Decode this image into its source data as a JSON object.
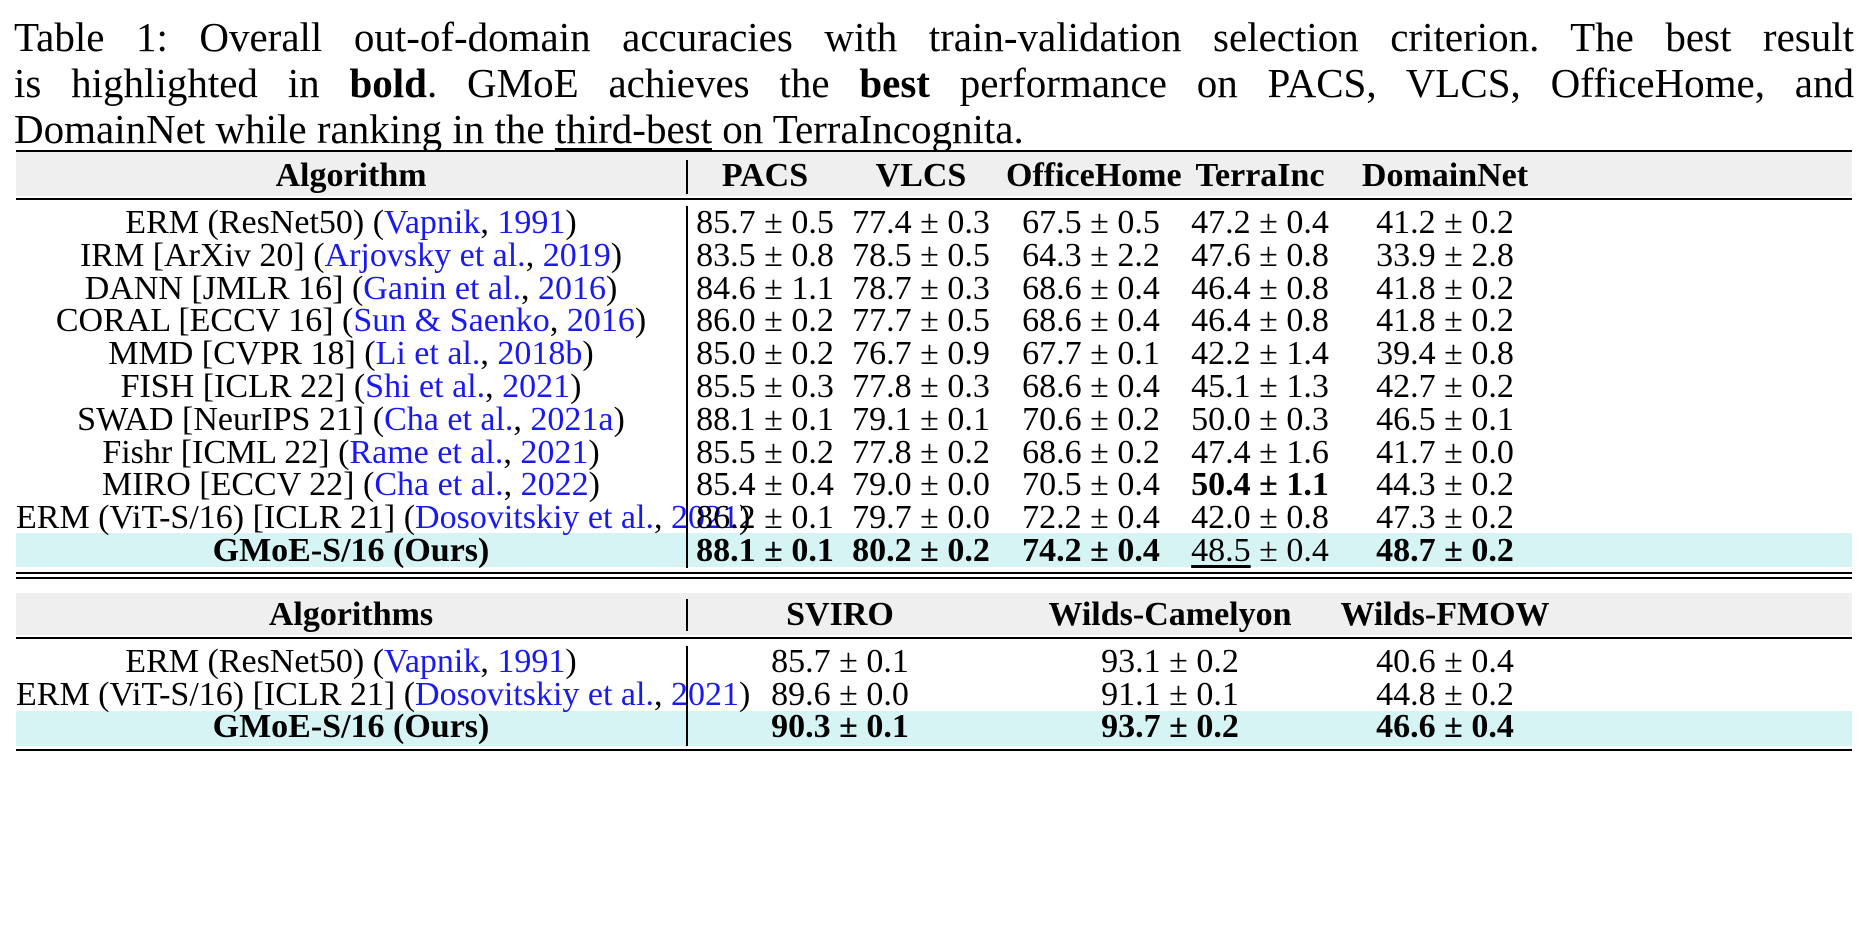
{
  "caption": {
    "line1": "Table 1: Overall out-of-domain accuracies with train-validation selection criterion. The best result",
    "line2_a": "is highlighted in ",
    "line2_bold1": "bold",
    "line2_b": ". GMoE achieves the ",
    "line2_bold2": "best",
    "line2_c": " performance on PACS, VLCS, OfficeHome, and",
    "line3_a": "DomainNet while ranking in the ",
    "line3_underlined": "third-best",
    "line3_b": " on TerraIncognita."
  },
  "table1": {
    "headers": [
      "Algorithm",
      "PACS",
      "VLCS",
      "OfficeHome",
      "TerraInc",
      "DomainNet"
    ],
    "rows": [
      {
        "name": "ERM (ResNet50) (",
        "cite_author": "Vapnik",
        "sep": ", ",
        "cite_year": "1991",
        "close": ")",
        "values": [
          "85.7 ± 0.5",
          "77.4 ± 0.3",
          "67.5 ± 0.5",
          "47.2 ± 0.4",
          "41.2 ± 0.2"
        ]
      },
      {
        "name": "IRM [ArXiv 20] (",
        "cite_author": "Arjovsky et al.",
        "sep": ", ",
        "cite_year": "2019",
        "close": ")",
        "values": [
          "83.5 ± 0.8",
          "78.5 ± 0.5",
          "64.3 ± 2.2",
          "47.6 ± 0.8",
          "33.9 ± 2.8"
        ]
      },
      {
        "name": "DANN [JMLR 16] (",
        "cite_author": "Ganin et al.",
        "sep": ", ",
        "cite_year": "2016",
        "close": ")",
        "values": [
          "84.6 ± 1.1",
          "78.7 ± 0.3",
          "68.6 ± 0.4",
          "46.4 ± 0.8",
          "41.8 ± 0.2"
        ]
      },
      {
        "name": "CORAL [ECCV 16] (",
        "cite_author": "Sun & Saenko",
        "sep": ", ",
        "cite_year": "2016",
        "close": ")",
        "values": [
          "86.0 ± 0.2",
          "77.7 ± 0.5",
          "68.6 ± 0.4",
          "46.4 ± 0.8",
          "41.8 ± 0.2"
        ]
      },
      {
        "name": "MMD [CVPR 18] (",
        "cite_author": "Li et al.",
        "sep": ", ",
        "cite_year": "2018b",
        "close": ")",
        "values": [
          "85.0 ± 0.2",
          "76.7 ± 0.9",
          "67.7 ± 0.1",
          "42.2 ± 1.4",
          "39.4 ± 0.8"
        ]
      },
      {
        "name": "FISH [ICLR 22] (",
        "cite_author": "Shi et al.",
        "sep": ", ",
        "cite_year": "2021",
        "close": ")",
        "values": [
          "85.5 ± 0.3",
          "77.8 ± 0.3",
          "68.6 ± 0.4",
          "45.1 ± 1.3",
          "42.7 ± 0.2"
        ]
      },
      {
        "name": "SWAD [NeurIPS 21] (",
        "cite_author": "Cha et al.",
        "sep": ", ",
        "cite_year": "2021a",
        "close": ")",
        "values": [
          "88.1 ± 0.1",
          "79.1 ± 0.1",
          "70.6 ± 0.2",
          "50.0 ± 0.3",
          "46.5 ± 0.1"
        ]
      },
      {
        "name": "Fishr [ICML 22] (",
        "cite_author": "Rame et al.",
        "sep": ", ",
        "cite_year": "2021",
        "close": ")",
        "values": [
          "85.5 ± 0.2",
          "77.8 ± 0.2",
          "68.6 ± 0.2",
          "47.4 ± 1.6",
          "41.7 ± 0.0"
        ]
      },
      {
        "name": "MIRO [ECCV 22] (",
        "cite_author": "Cha et al.",
        "sep": ", ",
        "cite_year": "2022",
        "close": ")",
        "values": [
          "85.4 ± 0.4",
          "79.0 ± 0.0",
          "70.5 ± 0.4",
          "50.4 ± 1.1",
          "44.3 ± 0.2"
        ]
      },
      {
        "name": "ERM (ViT-S/16) [ICLR 21] (",
        "cite_author": "Dosovitskiy et al.",
        "sep": ", ",
        "cite_year": "2021",
        "close": ")",
        "values": [
          "86.2 ± 0.1",
          "79.7 ± 0.0",
          "72.2 ± 0.4",
          "42.0 ± 0.8",
          "47.3 ± 0.2"
        ]
      }
    ],
    "ours": {
      "name": "GMoE-S/16 (Ours)",
      "values": [
        "88.1 ± 0.1",
        "80.2 ± 0.2",
        "74.2 ± 0.4",
        "48.5",
        " ± 0.4",
        "48.7 ± 0.2"
      ]
    }
  },
  "table2": {
    "headers": [
      "Algorithms",
      "SVIRO",
      "Wilds-Camelyon",
      "Wilds-FMOW"
    ],
    "rows": [
      {
        "name": "ERM (ResNet50) (",
        "cite_author": "Vapnik",
        "sep": ", ",
        "cite_year": "1991",
        "close": ")",
        "values": [
          "85.7 ± 0.1",
          "93.1 ± 0.2",
          "40.6 ± 0.4"
        ]
      },
      {
        "name": "ERM (ViT-S/16) [ICLR 21] (",
        "cite_author": "Dosovitskiy et al.",
        "sep": ", ",
        "cite_year": "2021",
        "close": ")",
        "values": [
          "89.6 ± 0.0",
          "91.1 ± 0.1",
          "44.8 ± 0.2"
        ]
      }
    ],
    "ours": {
      "name": "GMoE-S/16 (Ours)",
      "values": [
        "90.3 ± 0.1",
        "93.7 ± 0.2",
        "46.6 ± 0.4"
      ]
    }
  },
  "colors": {
    "citation": "#1a1aef",
    "highlight_row": "#d6f4f4",
    "header_bg": "#efefef"
  }
}
